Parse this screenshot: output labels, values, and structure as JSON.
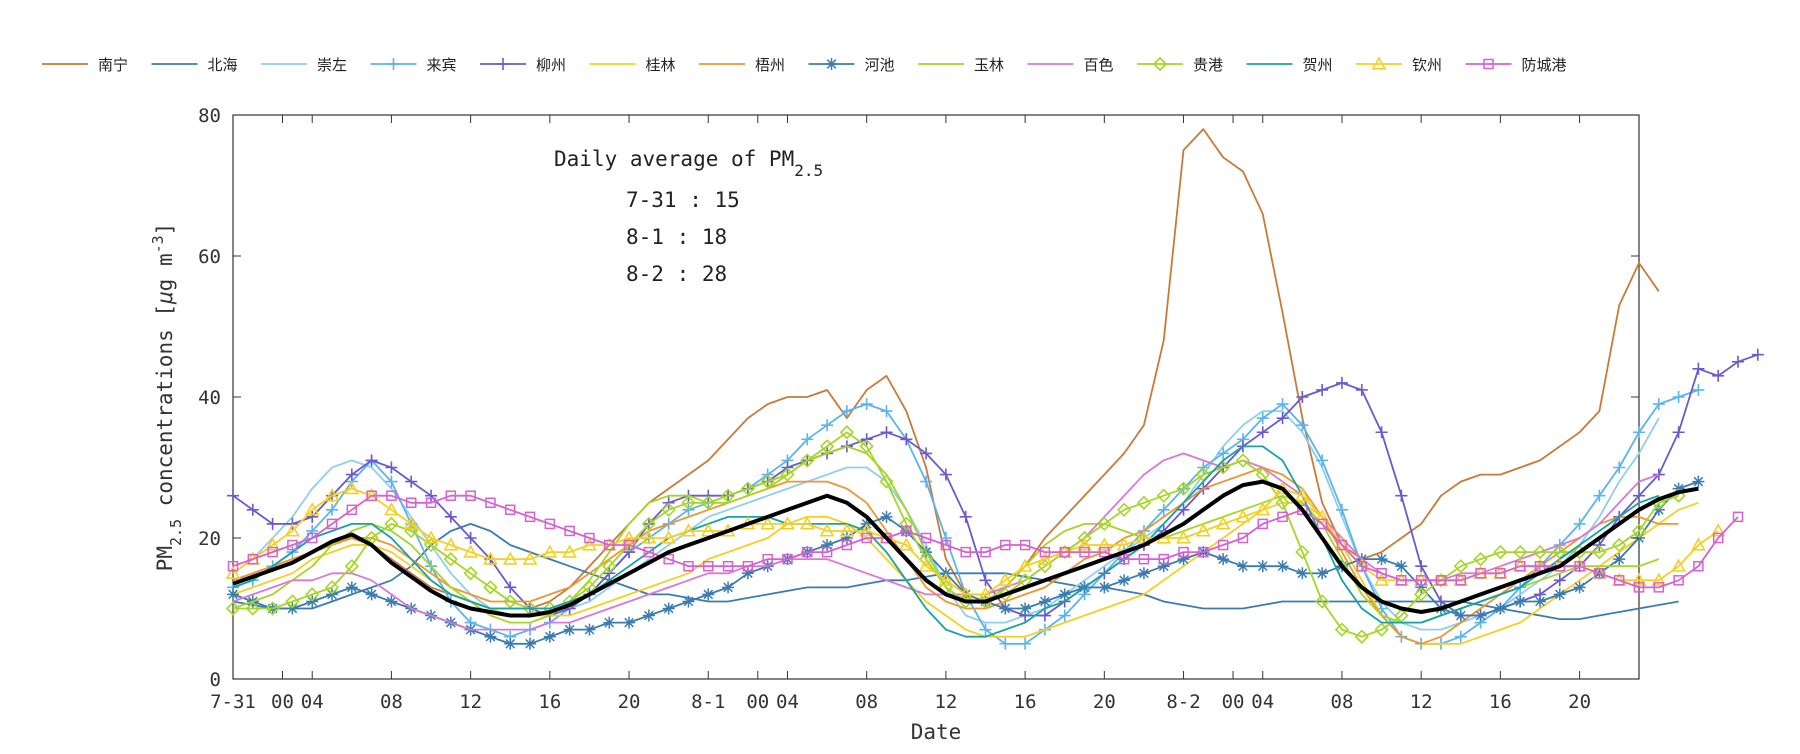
{
  "chart_data": {
    "type": "line",
    "xlabel": "Date",
    "ylabel": "PM",
    "ylabel_sub": "2.5",
    "ylabel_rest": " concentrations [",
    "ylabel_unit_mu": "μ",
    "ylabel_unit": "g m",
    "ylabel_exp": "-3",
    "ylabel_close": "]",
    "ylim": [
      0,
      80
    ],
    "yticks": [
      0,
      20,
      40,
      60,
      80
    ],
    "xlim": [
      0,
      71
    ],
    "xticks": [
      {
        "x": 0,
        "label": "7-31"
      },
      {
        "x": 2.5,
        "label": "00"
      },
      {
        "x": 4,
        "label": "04"
      },
      {
        "x": 8,
        "label": "08"
      },
      {
        "x": 12,
        "label": "12"
      },
      {
        "x": 16,
        "label": "16"
      },
      {
        "x": 20,
        "label": "20"
      },
      {
        "x": 24,
        "label": "8-1"
      },
      {
        "x": 26.5,
        "label": "00"
      },
      {
        "x": 28,
        "label": "04"
      },
      {
        "x": 32,
        "label": "08"
      },
      {
        "x": 36,
        "label": "12"
      },
      {
        "x": 40,
        "label": "16"
      },
      {
        "x": 44,
        "label": "20"
      },
      {
        "x": 48,
        "label": "8-2"
      },
      {
        "x": 50.5,
        "label": "00"
      },
      {
        "x": 52,
        "label": "04"
      },
      {
        "x": 56,
        "label": "08"
      },
      {
        "x": 60,
        "label": "12"
      },
      {
        "x": 64,
        "label": "16"
      },
      {
        "x": 68,
        "label": "20"
      }
    ],
    "annotation": {
      "title": "Daily average of PM",
      "title_sub": "2.5",
      "lines": [
        "7-31 : 15",
        "8-1 : 18",
        "8-2 : 28"
      ]
    },
    "legend_position": "top",
    "series": [
      {
        "name": "南宁",
        "color": "#c87a3a",
        "marker": "none",
        "values": [
          14,
          15,
          16,
          17,
          18,
          19,
          20,
          19,
          17,
          15,
          13,
          12,
          11,
          10,
          10,
          10,
          11,
          13,
          16,
          19,
          22,
          25,
          27,
          29,
          31,
          34,
          37,
          39,
          40,
          40,
          41,
          37,
          41,
          43,
          38,
          30,
          17,
          12,
          12,
          13,
          16,
          20,
          23,
          26,
          29,
          32,
          36,
          48,
          75,
          78,
          74,
          72,
          66,
          52,
          37,
          25,
          19,
          17,
          18,
          20,
          22,
          26,
          28,
          29,
          29,
          30,
          31,
          33,
          35,
          38,
          53,
          59,
          55
        ]
      },
      {
        "name": "北海",
        "color": "#3b7cb0",
        "marker": "none",
        "values": [
          11,
          10.5,
          10,
          10,
          10,
          11,
          12,
          13,
          14,
          16,
          19,
          21,
          22,
          21,
          19,
          18,
          17,
          16,
          15,
          14,
          13,
          12,
          12,
          11.5,
          11,
          11,
          11.5,
          12,
          12.5,
          13,
          13,
          13,
          13.5,
          14,
          14,
          14.5,
          15,
          15,
          15,
          15,
          14.5,
          14,
          13.5,
          13,
          13,
          12.5,
          12,
          11,
          10.5,
          10,
          10,
          10,
          10.5,
          11,
          11,
          11,
          11,
          11,
          11,
          11,
          11,
          11,
          11,
          10.5,
          10,
          9.5,
          9,
          8.5,
          8.5,
          9,
          9.5,
          10,
          10.5,
          11
        ]
      },
      {
        "name": "崇左",
        "color": "#8fcfee",
        "marker": "none",
        "values": [
          15,
          17,
          20,
          23,
          27,
          30,
          31,
          30,
          27,
          23,
          19,
          15,
          12,
          10,
          9,
          9,
          9,
          10,
          11,
          13,
          15,
          17,
          19,
          21,
          23,
          24,
          25,
          26,
          27,
          28,
          29,
          30,
          30,
          28,
          24,
          19,
          13,
          9,
          8,
          8,
          9,
          10,
          12,
          14,
          16,
          18,
          20,
          22,
          25,
          29,
          33,
          36,
          38,
          38,
          35,
          30,
          23,
          16,
          11,
          8,
          7,
          7,
          8,
          9,
          10,
          12,
          14,
          16,
          19,
          23,
          28,
          32,
          37
        ]
      },
      {
        "name": "来宾",
        "color": "#5bb4ee",
        "marker": "plus",
        "values": [
          13,
          14,
          16,
          18,
          21,
          24,
          28,
          31,
          28,
          22,
          16,
          11,
          8,
          7,
          6,
          7,
          8,
          10,
          12,
          15,
          18,
          20,
          22,
          24,
          25,
          26,
          27,
          29,
          31,
          34,
          36,
          38,
          39,
          38,
          34,
          28,
          20,
          12,
          7,
          5,
          5,
          7,
          9,
          12,
          15,
          18,
          21,
          24,
          27,
          30,
          32,
          34,
          37,
          39,
          36,
          31,
          24,
          16,
          10,
          6,
          5,
          5,
          6,
          8,
          10,
          13,
          16,
          19,
          22,
          26,
          30,
          35,
          39,
          40,
          41
        ]
      },
      {
        "name": "柳州",
        "color": "#6a5acd",
        "marker": "plus",
        "values": [
          26,
          24,
          22,
          22,
          23,
          26,
          29,
          31,
          30,
          28,
          26,
          23,
          20,
          17,
          13,
          10,
          9,
          10,
          12,
          15,
          18,
          22,
          25,
          26,
          26,
          26,
          27,
          28,
          30,
          31,
          32,
          33,
          34,
          35,
          34,
          32,
          29,
          23,
          14,
          10,
          9,
          9,
          11,
          13,
          15,
          17,
          19,
          21,
          24,
          27,
          30,
          33,
          35,
          37,
          40,
          41,
          42,
          41,
          35,
          26,
          16,
          11,
          9,
          9,
          10,
          11,
          12,
          14,
          16,
          19,
          23,
          26,
          29,
          35,
          44,
          43,
          45,
          46
        ]
      },
      {
        "name": "桂林",
        "color": "#f5d020",
        "marker": "none",
        "values": [
          12,
          13,
          14,
          15,
          17,
          18,
          19,
          19,
          18,
          16,
          14,
          12,
          11,
          10,
          9,
          9,
          9,
          9,
          10,
          11,
          12,
          13,
          14,
          15,
          17,
          18,
          19,
          20,
          22,
          23,
          23,
          22,
          20,
          17,
          14,
          11,
          9,
          7,
          6,
          6,
          6,
          7,
          8,
          9,
          10,
          11,
          12,
          14,
          16,
          18,
          20,
          22,
          24,
          25,
          25,
          23,
          19,
          14,
          9,
          6,
          5,
          5,
          5,
          6,
          7,
          8,
          10,
          12,
          14,
          16,
          18,
          20,
          22,
          24,
          25
        ]
      },
      {
        "name": "梧州",
        "color": "#f0962e",
        "marker": "none",
        "values": [
          14,
          15,
          16,
          17,
          18,
          19,
          20,
          20,
          19,
          17,
          15,
          13,
          12,
          11,
          11,
          11,
          12,
          13,
          15,
          17,
          19,
          21,
          22,
          23,
          24,
          25,
          26,
          27,
          28,
          28,
          28,
          27,
          25,
          21,
          17,
          13,
          11,
          10,
          10,
          11,
          12,
          13,
          15,
          17,
          18,
          20,
          21,
          23,
          25,
          27,
          28,
          29,
          30,
          29,
          27,
          23,
          18,
          13,
          9,
          6,
          5,
          6,
          8,
          10,
          12,
          14,
          16,
          18,
          20,
          22,
          23,
          23,
          22,
          22
        ]
      },
      {
        "name": "河池",
        "color": "#3b7cb0",
        "marker": "star",
        "values": [
          12,
          11,
          10,
          10,
          11,
          12,
          13,
          12,
          11,
          10,
          9,
          8,
          7,
          6,
          5,
          5,
          6,
          7,
          7,
          8,
          8,
          9,
          10,
          11,
          12,
          13,
          15,
          16,
          17,
          18,
          19,
          20,
          22,
          23,
          21,
          18,
          15,
          12,
          11,
          10,
          10,
          11,
          12,
          13,
          13,
          14,
          15,
          16,
          17,
          18,
          17,
          16,
          16,
          16,
          15,
          15,
          16,
          17,
          17,
          16,
          13,
          10,
          9,
          9,
          10,
          11,
          11,
          12,
          13,
          15,
          17,
          20,
          24,
          27,
          28
        ]
      },
      {
        "name": "玉林",
        "color": "#a5d625",
        "marker": "none",
        "values": [
          10,
          11,
          12,
          14,
          16,
          19,
          21,
          22,
          21,
          19,
          16,
          13,
          11,
          9,
          8,
          8,
          9,
          11,
          14,
          18,
          22,
          25,
          26,
          26,
          25,
          25,
          26,
          27,
          29,
          31,
          32,
          33,
          32,
          29,
          24,
          18,
          13,
          11,
          11,
          13,
          16,
          19,
          21,
          22,
          22,
          21,
          20,
          20,
          21,
          22,
          23,
          24,
          25,
          26,
          25,
          22,
          17,
          12,
          9,
          8,
          8,
          9,
          10,
          11,
          12,
          13,
          14,
          15,
          16,
          16,
          16,
          16,
          17
        ]
      },
      {
        "name": "百色",
        "color": "#d878d8",
        "marker": "none",
        "values": [
          11,
          12,
          13,
          14,
          14,
          15,
          15,
          14,
          12,
          10,
          9,
          8,
          7,
          7,
          7,
          7,
          8,
          8,
          9,
          10,
          11,
          12,
          13,
          14,
          15,
          15,
          16,
          16,
          17,
          17,
          17,
          16,
          15,
          14,
          13,
          12,
          12,
          12,
          12,
          13,
          14,
          16,
          18,
          20,
          23,
          26,
          29,
          31,
          32,
          31,
          30,
          31,
          30,
          28,
          26,
          23,
          20,
          17,
          15,
          14,
          14,
          14,
          15,
          15,
          16,
          17,
          18,
          19,
          20,
          22,
          25,
          28,
          29
        ]
      },
      {
        "name": "贵港",
        "color": "#a5d625",
        "marker": "diamond",
        "values": [
          10,
          10,
          10,
          11,
          12,
          13,
          16,
          20,
          22,
          21,
          19,
          17,
          15,
          13,
          11,
          10,
          10,
          11,
          13,
          16,
          19,
          22,
          24,
          25,
          25,
          26,
          27,
          28,
          29,
          31,
          33,
          35,
          33,
          28,
          22,
          17,
          13,
          11,
          11,
          12,
          14,
          16,
          18,
          20,
          22,
          24,
          25,
          26,
          27,
          29,
          30,
          31,
          29,
          25,
          18,
          11,
          7,
          6,
          7,
          9,
          12,
          14,
          16,
          17,
          18,
          18,
          18,
          18,
          18,
          18,
          19,
          21,
          25,
          26
        ]
      },
      {
        "name": "贺州",
        "color": "#17a3a3",
        "marker": "none",
        "values": [
          13,
          14,
          16,
          18,
          20,
          21,
          22,
          22,
          20,
          17,
          14,
          12,
          11,
          10,
          10,
          10,
          10,
          11,
          12,
          14,
          16,
          18,
          20,
          21,
          22,
          23,
          23,
          23,
          22,
          22,
          22,
          22,
          21,
          18,
          14,
          10,
          7,
          6,
          6,
          7,
          8,
          10,
          11,
          13,
          15,
          17,
          19,
          22,
          25,
          28,
          31,
          33,
          33,
          31,
          26,
          20,
          14,
          10,
          8,
          8,
          8,
          9,
          10,
          11,
          12,
          13,
          15,
          17,
          19,
          21,
          23,
          25,
          26
        ]
      },
      {
        "name": "钦州",
        "color": "#f5d020",
        "marker": "triangle",
        "values": [
          15,
          17,
          19,
          21,
          24,
          26,
          27,
          26,
          24,
          22,
          20,
          19,
          18,
          17,
          17,
          17,
          18,
          18,
          19,
          19,
          20,
          20,
          20,
          21,
          21,
          21,
          22,
          22,
          22,
          22,
          21,
          21,
          21,
          20,
          19,
          16,
          14,
          12,
          12,
          14,
          16,
          17,
          18,
          19,
          19,
          19,
          20,
          20,
          20,
          21,
          22,
          23,
          24,
          27,
          26,
          23,
          19,
          16,
          14,
          14,
          14,
          14,
          14,
          15,
          15,
          16,
          16,
          16,
          16,
          15,
          14,
          14,
          14,
          16,
          19,
          21
        ]
      },
      {
        "name": "防城港",
        "color": "#d860d0",
        "marker": "square",
        "values": [
          16,
          17,
          18,
          19,
          20,
          22,
          24,
          26,
          26,
          25,
          25,
          26,
          26,
          25,
          24,
          23,
          22,
          21,
          20,
          19,
          19,
          18,
          17,
          16,
          16,
          16,
          16,
          17,
          17,
          18,
          18,
          19,
          20,
          20,
          21,
          20,
          19,
          18,
          18,
          19,
          19,
          18,
          18,
          18,
          18,
          17,
          17,
          17,
          18,
          18,
          19,
          20,
          22,
          23,
          24,
          22,
          19,
          16,
          15,
          14,
          14,
          14,
          14,
          15,
          15,
          16,
          16,
          16,
          16,
          15,
          14,
          13,
          13,
          14,
          16,
          20,
          23
        ]
      },
      {
        "name": "mean",
        "color": "#000000",
        "marker": "none",
        "legend": false,
        "thick": true,
        "values": [
          13.5,
          14.5,
          15.5,
          16.5,
          18,
          19.5,
          20.5,
          19,
          16.5,
          14.5,
          12.5,
          11,
          10,
          9.5,
          9,
          9,
          9.5,
          10.5,
          12,
          13.5,
          15,
          16.5,
          18,
          19,
          20,
          21,
          22,
          23,
          24,
          25,
          26,
          25,
          23,
          20,
          17,
          14,
          12,
          11,
          11,
          12,
          13,
          14,
          15,
          16,
          17,
          18,
          19,
          20.5,
          22,
          24,
          26,
          27.5,
          28,
          27,
          24,
          20,
          16,
          13,
          11,
          10,
          9.5,
          10,
          11,
          12,
          13,
          14,
          15,
          16,
          18,
          20,
          22,
          24,
          25.5,
          26.5,
          27
        ]
      }
    ]
  }
}
